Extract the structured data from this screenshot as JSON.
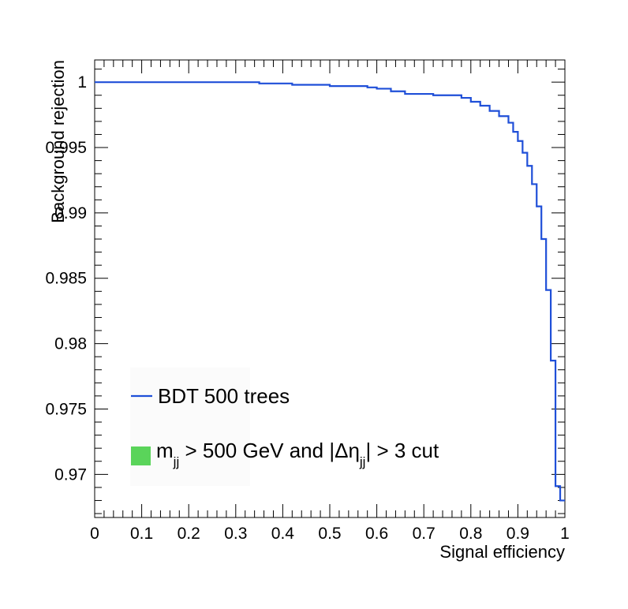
{
  "chart_data": {
    "type": "line",
    "title": "",
    "xlabel": "Signal efficiency",
    "ylabel": "Background rejection",
    "xlim": [
      0,
      1
    ],
    "ylim": [
      0.9667,
      1.0017
    ],
    "x_ticks": [
      "0",
      "0.1",
      "0.2",
      "0.3",
      "0.4",
      "0.5",
      "0.6",
      "0.7",
      "0.8",
      "0.9",
      "1"
    ],
    "y_ticks": [
      "0.97",
      "0.975",
      "0.98",
      "0.985",
      "0.99",
      "0.995",
      "1"
    ],
    "grid": false,
    "legend_position": "bottom-left",
    "series": [
      {
        "name": "BDT 500 trees",
        "color": "#1f4fd8",
        "style": "step",
        "x": [
          0.0,
          0.1,
          0.2,
          0.35,
          0.42,
          0.5,
          0.58,
          0.6,
          0.63,
          0.66,
          0.72,
          0.78,
          0.8,
          0.82,
          0.84,
          0.86,
          0.88,
          0.89,
          0.9,
          0.91,
          0.92,
          0.93,
          0.94,
          0.95,
          0.96,
          0.97,
          0.98,
          0.99,
          1.0
        ],
        "y": [
          1.0,
          1.0,
          1.0,
          0.9999,
          0.9998,
          0.9997,
          0.9996,
          0.9995,
          0.9993,
          0.9991,
          0.999,
          0.9988,
          0.9985,
          0.9982,
          0.9978,
          0.9974,
          0.9969,
          0.9962,
          0.9955,
          0.9946,
          0.9936,
          0.9922,
          0.9905,
          0.988,
          0.9841,
          0.9787,
          0.9691,
          0.968,
          0.968
        ]
      }
    ],
    "legend": [
      {
        "label": "BDT 500 trees",
        "kind": "line",
        "color": "#1f4fd8"
      },
      {
        "label_parts": [
          "m",
          "jj",
          " > 500 GeV and |Δη",
          "jj",
          "| > 3 cut"
        ],
        "kind": "box",
        "color": "#5ad45a"
      }
    ]
  }
}
